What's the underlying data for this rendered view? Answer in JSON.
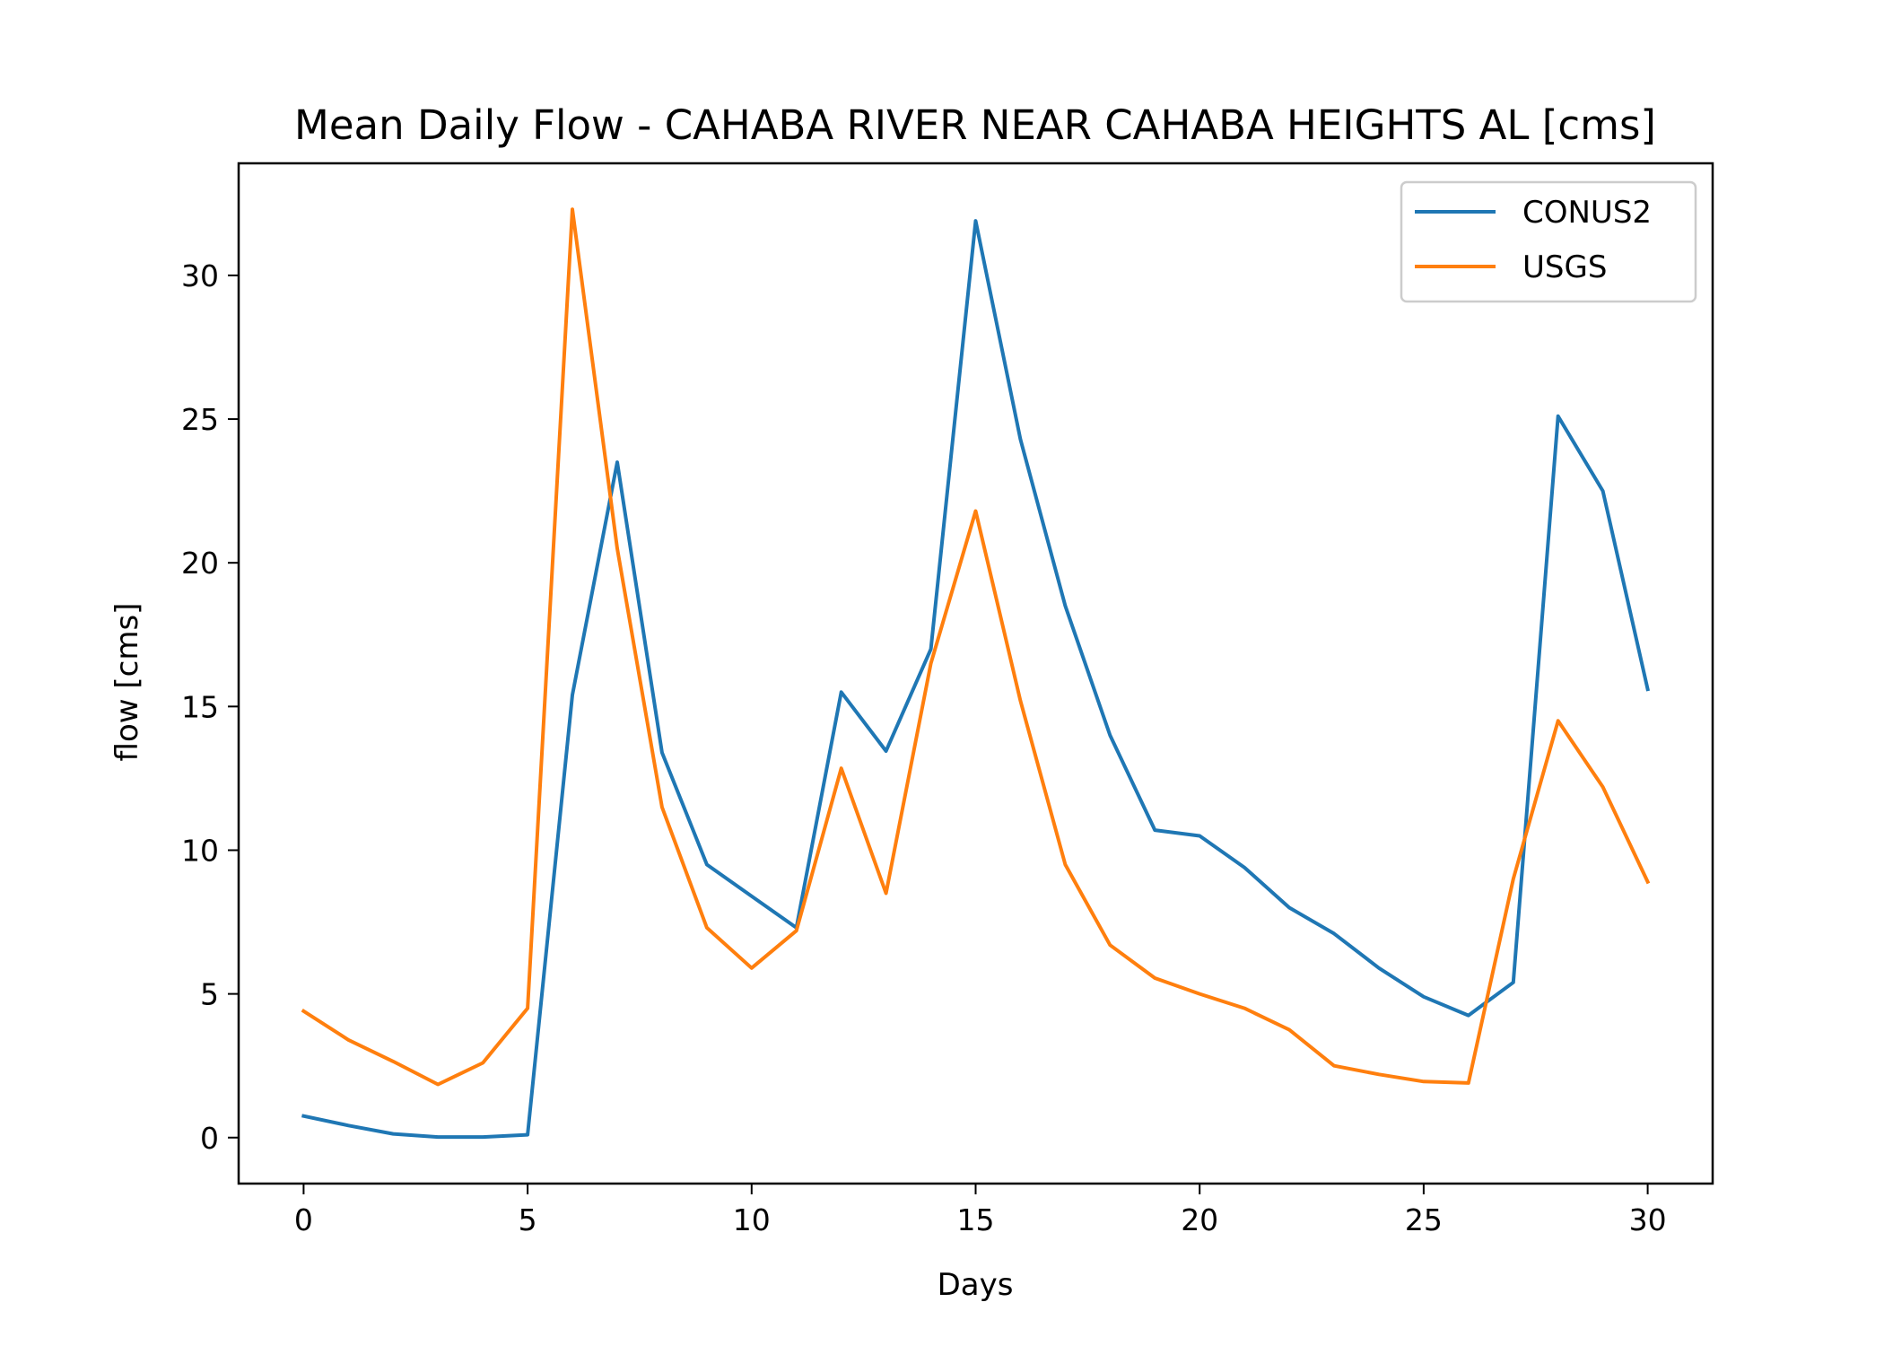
{
  "chart_data": {
    "type": "line",
    "title": "Mean Daily Flow - CAHABA RIVER NEAR CAHABA HEIGHTS AL [cms]",
    "xlabel": "Days",
    "ylabel": "flow [cms]",
    "xlim": [
      -1.45,
      31.45
    ],
    "ylim": [
      -1.6,
      33.9
    ],
    "xticks": [
      0,
      5,
      10,
      15,
      20,
      25,
      30
    ],
    "yticks": [
      0,
      5,
      10,
      15,
      20,
      25,
      30
    ],
    "grid": false,
    "legend_position": "top-right",
    "x": [
      0,
      1,
      2,
      3,
      4,
      5,
      6,
      7,
      8,
      9,
      10,
      11,
      12,
      13,
      14,
      15,
      16,
      17,
      18,
      19,
      20,
      21,
      22,
      23,
      24,
      25,
      26,
      27,
      28,
      29,
      30
    ],
    "series": [
      {
        "name": "CONUS2",
        "color": "#1f77b4",
        "values": [
          0.75,
          0.42,
          0.13,
          0.02,
          0.02,
          0.1,
          15.4,
          23.5,
          13.4,
          9.5,
          8.4,
          7.3,
          15.5,
          13.45,
          17.0,
          31.9,
          24.3,
          18.5,
          14.0,
          10.7,
          10.5,
          9.4,
          8.0,
          7.1,
          5.9,
          4.9,
          4.25,
          5.4,
          25.1,
          22.5,
          15.6
        ]
      },
      {
        "name": "USGS",
        "color": "#ff7f0e",
        "values": [
          4.4,
          3.4,
          2.65,
          1.85,
          2.6,
          4.5,
          32.3,
          20.5,
          11.5,
          7.3,
          5.9,
          7.2,
          12.85,
          8.5,
          16.5,
          21.8,
          15.2,
          9.5,
          6.7,
          5.55,
          5.0,
          4.5,
          3.75,
          2.5,
          2.2,
          1.95,
          1.9,
          9.0,
          14.5,
          12.2,
          8.9
        ]
      }
    ]
  }
}
